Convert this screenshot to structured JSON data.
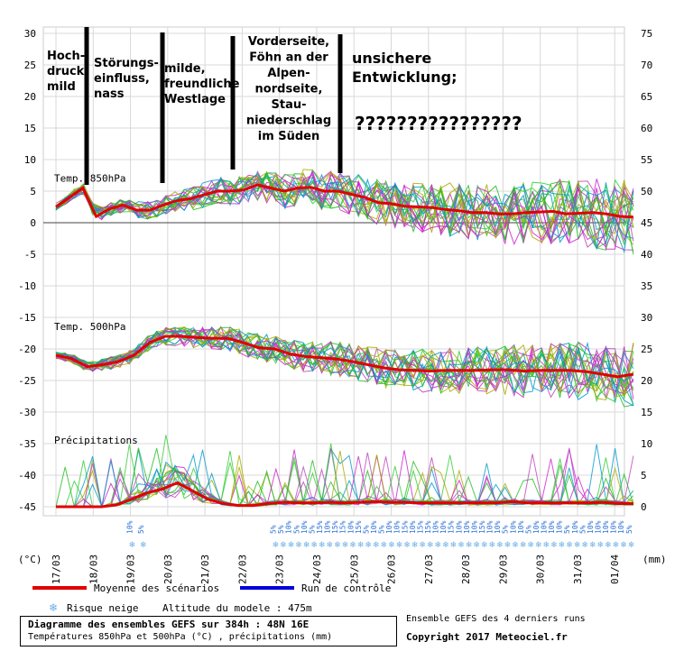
{
  "chart_data": {
    "type": "line",
    "title": "Diagramme des ensembles GEFS sur 384h : 48N 16E",
    "subtitle": "Températures 850hPa et 500hPa (°C) , précipitations (mm)",
    "left_axis": {
      "unit": "(°C)",
      "ticks": [
        30,
        25,
        20,
        15,
        10,
        5,
        0,
        -5,
        -10,
        -15,
        -20,
        -25,
        -30,
        -35,
        -40,
        -45
      ]
    },
    "right_axis": {
      "unit": "(mm)",
      "ticks": [
        75,
        70,
        65,
        60,
        55,
        50,
        45,
        40,
        35,
        30,
        25,
        20,
        15,
        10,
        5,
        0
      ]
    },
    "x_tick_labels": [
      "17/03",
      "18/03",
      "19/03",
      "20/03",
      "21/03",
      "22/03",
      "23/03",
      "24/03",
      "25/03",
      "26/03",
      "27/03",
      "28/03",
      "29/03",
      "30/03",
      "31/03",
      "01/04"
    ],
    "grid": true,
    "panels": [
      {
        "label": "Temp. 850hPa",
        "mean": [
          2.5,
          4,
          5.5,
          1,
          2.2,
          2.8,
          2,
          2,
          2.8,
          3.5,
          3.8,
          4.4,
          5,
          5,
          5.2,
          6,
          5.5,
          5,
          5.5,
          5.6,
          5,
          5,
          4.5,
          4,
          3.2,
          3,
          2.6,
          2.5,
          2.4,
          2.1,
          1.9,
          1.6,
          1.6,
          1.4,
          1.4,
          1.6,
          1.7,
          1.8,
          1.4,
          1.5,
          1.6,
          1.4,
          1.0,
          0.9
        ]
      },
      {
        "label": "Temp. 500hPa",
        "mean": [
          -21,
          -21.5,
          -22.8,
          -22.5,
          -22,
          -21,
          -19,
          -18,
          -18,
          -18.2,
          -18.3,
          -18.3,
          -19,
          -19.8,
          -20,
          -20.8,
          -21.2,
          -21.4,
          -21.6,
          -22,
          -22.5,
          -23,
          -23.3,
          -23.4,
          -23.5,
          -23.4,
          -23.4,
          -23.4,
          -23.3,
          -23.3,
          -23.5,
          -23.4,
          -23.4,
          -23.4,
          -23.6,
          -24,
          -24.4,
          -24
        ]
      },
      {
        "label": "Précipitations",
        "mean_mm": [
          0,
          0,
          0,
          0,
          0.3,
          1.2,
          2.2,
          2.8,
          3.8,
          2.5,
          1.2,
          0.5,
          0.2,
          0.2,
          0.5,
          0.7,
          0.6,
          0.6,
          0.7,
          0.6,
          0.7,
          0.8,
          0.7,
          0.7,
          0.6,
          0.6,
          0.6,
          0.6,
          0.6,
          0.6,
          0.8,
          0.6,
          0.6,
          0.6,
          0.6,
          0.6,
          0.7,
          0.5,
          0.5
        ]
      }
    ],
    "snow_risk": [
      {
        "value": "10%"
      },
      {
        "value": "5%"
      },
      {
        "value": "5%"
      },
      {
        "value": "5%"
      },
      {
        "value": "10%"
      },
      {
        "value": "5%"
      },
      {
        "value": "10%"
      },
      {
        "value": "5%"
      },
      {
        "value": "15%"
      },
      {
        "value": "10%"
      },
      {
        "value": "15%"
      },
      {
        "value": "15%"
      },
      {
        "value": "10%"
      },
      {
        "value": "15%"
      },
      {
        "value": "5%"
      },
      {
        "value": "10%"
      },
      {
        "value": "5%"
      },
      {
        "value": "10%"
      },
      {
        "value": "10%"
      },
      {
        "value": "15%"
      },
      {
        "value": "10%"
      },
      {
        "value": "15%"
      },
      {
        "value": "15%"
      },
      {
        "value": "10%"
      },
      {
        "value": "10%"
      },
      {
        "value": "15%"
      },
      {
        "value": "10%"
      },
      {
        "value": "10%"
      },
      {
        "value": "10%"
      },
      {
        "value": "15%"
      },
      {
        "value": "10%"
      },
      {
        "value": "10%"
      },
      {
        "value": "5%"
      },
      {
        "value": "10%"
      },
      {
        "value": "10%"
      },
      {
        "value": "5%"
      },
      {
        "value": "10%"
      },
      {
        "value": "10%"
      },
      {
        "value": "10%"
      },
      {
        "value": "10%"
      },
      {
        "value": "5%"
      },
      {
        "value": "10%"
      },
      {
        "value": "5%"
      },
      {
        "value": "10%"
      },
      {
        "value": "10%"
      },
      {
        "value": "10%"
      },
      {
        "value": "10%"
      },
      {
        "value": "10%"
      },
      {
        "value": "5%"
      }
    ],
    "legend": {
      "mean": "Moyenne des scénarios",
      "control": "Run de contrôle",
      "snow": "Risque neige",
      "altitude": "Altitude du modele : 475m"
    },
    "annotations": [
      {
        "lines": [
          "Hoch-",
          "druck,",
          "mild"
        ]
      },
      {
        "lines": [
          "Störungs-",
          "einfluss,",
          "nass"
        ]
      },
      {
        "lines": [
          "milde,",
          "freundliche",
          "Westlage"
        ]
      },
      {
        "lines": [
          "Vorderseite,",
          "Föhn an der",
          "Alpen-",
          "nordseite,",
          "Stau-",
          "niederschlag",
          "im Süden"
        ]
      },
      {
        "lines": [
          "unsichere",
          "Entwicklung;"
        ]
      },
      {
        "lines": [
          "????????????????"
        ]
      }
    ],
    "colors": {
      "mean": "#e00000",
      "control": "#0000dd",
      "ensemble": [
        "#22bb22",
        "#cc22cc",
        "#aaaa00",
        "#0099cc",
        "#33cc33",
        "#bb44bb"
      ]
    }
  },
  "footer": {
    "title": "Diagramme des ensembles GEFS sur 384h : 48N 16E",
    "subtitle": "Températures 850hPa et 500hPa (°C) , précipitations (mm)",
    "ens_note": "Ensemble GEFS des 4 derniers runs",
    "copyright": "Copyright 2017 Meteociel.fr"
  }
}
